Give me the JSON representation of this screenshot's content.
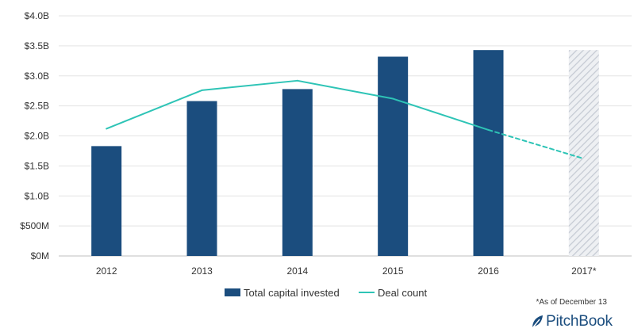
{
  "chart_data": {
    "type": "bar",
    "categories": [
      "2012",
      "2013",
      "2014",
      "2015",
      "2016",
      "2017*"
    ],
    "y_axis": {
      "ticks": [
        {
          "value": 0,
          "label": "$0M"
        },
        {
          "value": 0.5,
          "label": "$500M"
        },
        {
          "value": 1.0,
          "label": "$1.0B"
        },
        {
          "value": 1.5,
          "label": "$1.5B"
        },
        {
          "value": 2.0,
          "label": "$2.0B"
        },
        {
          "value": 2.5,
          "label": "$2.5B"
        },
        {
          "value": 3.0,
          "label": "$3.0B"
        },
        {
          "value": 3.5,
          "label": "$3.5B"
        },
        {
          "value": 4.0,
          "label": "$4.0B"
        }
      ],
      "ylim": [
        0,
        4.0
      ],
      "unit": "$B"
    },
    "grid": "horizontal",
    "legend_position": "bottom",
    "series": [
      {
        "name": "Total capital invested",
        "type": "bar",
        "color": "#1b4d7e",
        "values": [
          1.83,
          2.58,
          2.78,
          3.32,
          3.43,
          3.43
        ],
        "styles": [
          "solid",
          "solid",
          "solid",
          "solid",
          "solid",
          "hatched"
        ]
      },
      {
        "name": "Deal count",
        "type": "line",
        "color": "#2ec4b6",
        "values_in_axis_units": [
          2.12,
          2.76,
          2.92,
          2.62,
          2.1,
          1.62
        ],
        "styles": [
          "solid",
          "solid",
          "solid",
          "solid",
          "dashed"
        ]
      }
    ],
    "hatch_color": "#c5cad3"
  },
  "footnote": "*As of December 13",
  "brand": "PitchBook"
}
